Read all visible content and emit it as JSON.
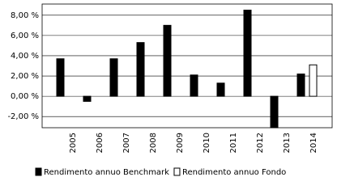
{
  "chart_data": {
    "type": "bar",
    "categories": [
      "2005",
      "2006",
      "2007",
      "2008",
      "2009",
      "2010",
      "2011",
      "2012",
      "2013",
      "2014"
    ],
    "series": [
      {
        "name": "Rendimento annuo Benchmark",
        "color": "#000000",
        "values": [
          3.7,
          -0.5,
          3.7,
          5.3,
          7.0,
          2.1,
          1.3,
          8.5,
          -3.1,
          2.2
        ]
      },
      {
        "name": "Rendimento annuo Fondo",
        "color": "#ffffff",
        "values": [
          null,
          null,
          null,
          null,
          null,
          null,
          null,
          null,
          null,
          3.1
        ]
      }
    ],
    "ylim": [
      -3.1,
      9.1
    ],
    "yticks": [
      {
        "value": -2,
        "label": "-2,00 %"
      },
      {
        "value": 0,
        "label": "0,00 %"
      },
      {
        "value": 2,
        "label": "2,00 %"
      },
      {
        "value": 4,
        "label": "4,00 %"
      },
      {
        "value": 6,
        "label": "6,00 %"
      },
      {
        "value": 8,
        "label": "8,00 %"
      }
    ],
    "grid": true
  }
}
